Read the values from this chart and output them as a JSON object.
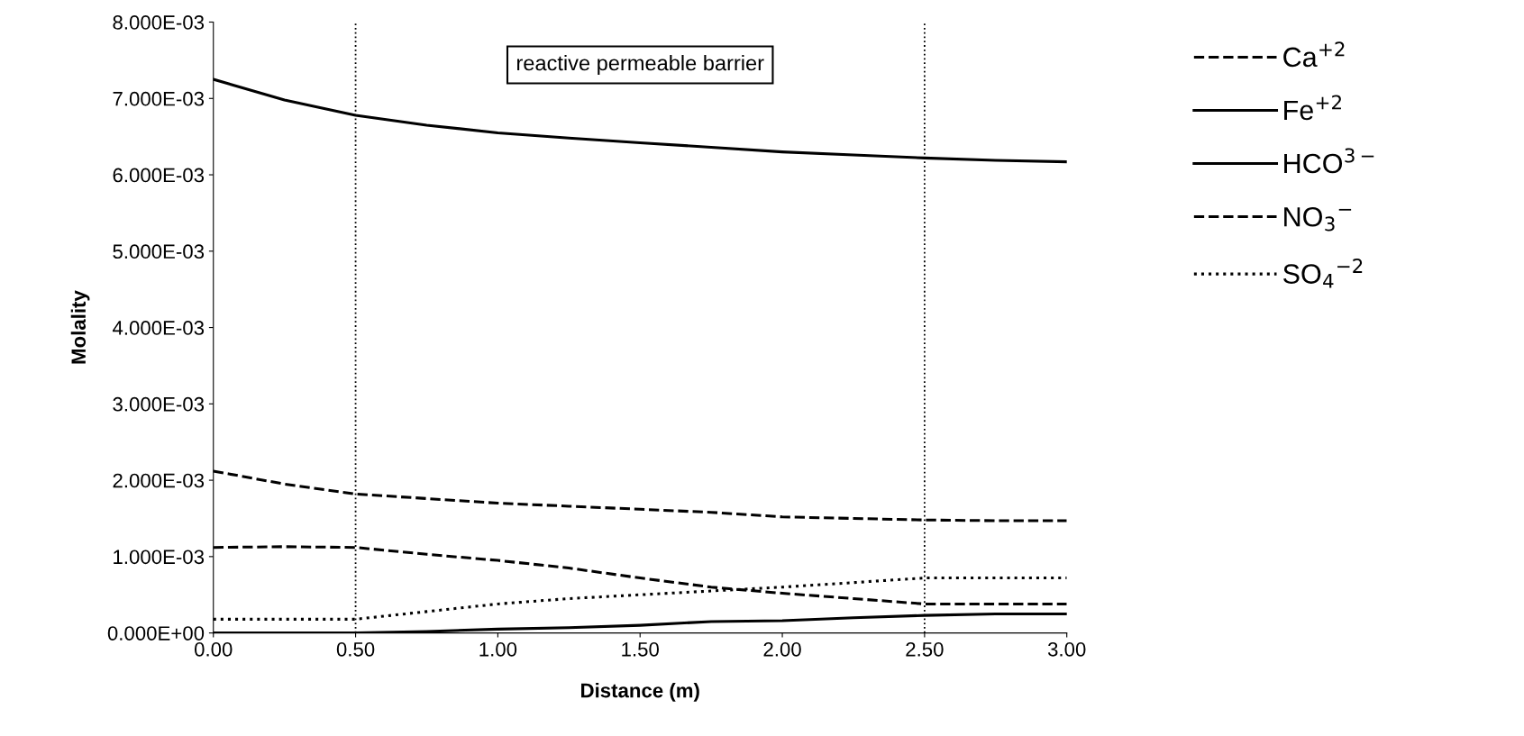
{
  "chart_data": {
    "type": "line",
    "xlabel": "Distance (m)",
    "ylabel": "Molality",
    "x": [
      0,
      0.25,
      0.5,
      0.75,
      1.0,
      1.25,
      1.5,
      1.75,
      2.0,
      2.25,
      2.5,
      2.75,
      3.0
    ],
    "series": [
      {
        "name": "Ca$^{+2}$",
        "color": "#000000",
        "line_style": "dashed",
        "values": [
          0.00212,
          0.00195,
          0.00182,
          0.00176,
          0.0017,
          0.00166,
          0.00162,
          0.00158,
          0.00152,
          0.0015,
          0.00148,
          0.00147,
          0.00147
        ]
      },
      {
        "name": "Fe$^{+2}$",
        "color": "#000000",
        "line_style": "solid",
        "values": [
          0,
          0,
          0,
          2e-05,
          5e-05,
          7e-05,
          0.0001,
          0.00015,
          0.00016,
          0.0002,
          0.00023,
          0.00025,
          0.00025
        ]
      },
      {
        "name": "HCO$^{3−}$",
        "color": "#000000",
        "line_style": "solid",
        "values": [
          0.00725,
          0.00698,
          0.00678,
          0.00665,
          0.00655,
          0.00648,
          0.00642,
          0.00636,
          0.0063,
          0.00626,
          0.00622,
          0.00619,
          0.00617
        ]
      },
      {
        "name": "NO$_{3}$$^{−}$",
        "color": "#000000",
        "line_style": "dashed",
        "values": [
          0.00112,
          0.00113,
          0.00112,
          0.00103,
          0.00095,
          0.00085,
          0.00072,
          0.0006,
          0.00052,
          0.00045,
          0.00038,
          0.00038,
          0.00038
        ]
      },
      {
        "name": "SO$_{4}$$^{−2}$",
        "color": "#000000",
        "line_style": "dotted",
        "values": [
          0.00018,
          0.00018,
          0.00018,
          0.00028,
          0.00038,
          0.00045,
          0.0005,
          0.00055,
          0.0006,
          0.00066,
          0.00072,
          0.00072,
          0.00072
        ]
      }
    ],
    "xlim": [
      0,
      3
    ],
    "xticks": [
      {
        "value": 0,
        "label": "0.00"
      },
      {
        "value": 0.5,
        "label": "0.50"
      },
      {
        "value": 1,
        "label": "1.00"
      },
      {
        "value": 1.5,
        "label": "1.50"
      },
      {
        "value": 2,
        "label": "2.00"
      },
      {
        "value": 2.5,
        "label": "2.50"
      },
      {
        "value": 3,
        "label": "3.00"
      }
    ],
    "ylim": [
      0,
      0.008
    ],
    "yticks": [
      {
        "value": 0,
        "label": "0.000E+00"
      },
      {
        "value": 0.001,
        "label": "1.000E-03"
      },
      {
        "value": 0.002,
        "label": "2.000E-03"
      },
      {
        "value": 0.003,
        "label": "3.000E-03"
      },
      {
        "value": 0.004,
        "label": "4.000E-03"
      },
      {
        "value": 0.005,
        "label": "5.000E-03"
      },
      {
        "value": 0.006,
        "label": "6.000E-03"
      },
      {
        "value": 0.007,
        "label": "7.000E-03"
      },
      {
        "value": 0.008,
        "label": "8.000E-03"
      }
    ],
    "ref_lines": [
      {
        "axis": "x",
        "value": 0.5,
        "line_style": "dotted",
        "color": "#000000"
      },
      {
        "axis": "x",
        "value": 2.5,
        "line_style": "dotted",
        "color": "#000000"
      }
    ],
    "annotations": [
      "reactive permeable barrier"
    ],
    "grid": false,
    "legend": "right",
    "marker": "none"
  }
}
